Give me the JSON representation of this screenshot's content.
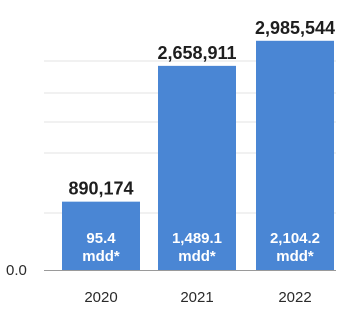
{
  "chart_data": {
    "type": "bar",
    "categories": [
      "2020",
      "2021",
      "2022"
    ],
    "values": [
      890174,
      2658911,
      2985544
    ],
    "value_labels": [
      "890,174",
      "2,658,911",
      "2,985,544"
    ],
    "inner_labels": [
      {
        "value": "95.4",
        "unit": "mdd*"
      },
      {
        "value": "1,489.1",
        "unit": "mdd*"
      },
      {
        "value": "2,104.2",
        "unit": "mdd*"
      }
    ],
    "y_tick_labels": [
      "0.0"
    ],
    "ylim": [
      0,
      3100000
    ],
    "grid": true,
    "bar_color": "#4a86d4",
    "grid_color": "#e3e3e3",
    "axis_color": "#9a9a9a",
    "text_color": "#1e1e1e"
  }
}
